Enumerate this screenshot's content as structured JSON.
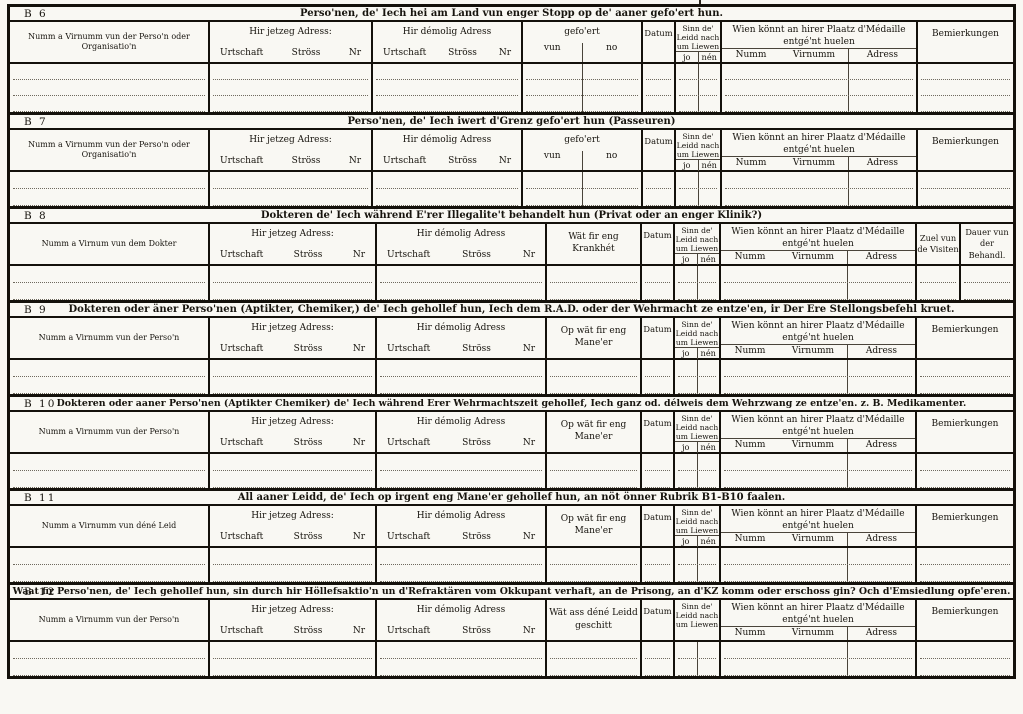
{
  "colors": {
    "paper": "#f9f8f3",
    "ink": "#17140e"
  },
  "common": {
    "current_address": "Hir jetzeg Adress:",
    "former_address": "Hir démolig Adress",
    "urtschaft": "Urtschaft",
    "stross": "Ströss",
    "nr": "Nr",
    "gefoert": "gefo'ert",
    "vun": "vun",
    "no": "no",
    "datum": "Datum",
    "alive_l1": "Sinn de'",
    "alive_l2": "Leidd nach",
    "alive_l3": "um Liewen",
    "jo": "jo",
    "nen": "nén",
    "medal_l1": "Wien könnt an hirer Plaatz d'Médaille",
    "medal_l2": "entgé'nt huelen",
    "numm": "Numm",
    "virnumm": "Virnumm",
    "adress": "Adress",
    "remarks": "Bemierkungen"
  },
  "sections": [
    {
      "id": "B 6",
      "title": "Perso'nen, de' Iech hei am Land vun enger Stopp op de' aaner gefo'ert hun.",
      "name_col": "Numm a Virnumm vun der Perso'n oder Organisatio'n"
    },
    {
      "id": "B 7",
      "title": "Perso'nen, de' Iech iwert d'Grenz gefo'ert hun (Passeuren)",
      "name_col": "Numm a Virnumm vun der Perso'n oder Organisatio'n"
    },
    {
      "id": "B 8",
      "title": "Dokteren de' Iech während E'rer Illegalite't behandelt hun (Privat oder an enger Klinik?)",
      "name_col": "Numm a Virnum vun dem Dokter",
      "col4": "Wät fir eng Krankhét",
      "visits_l1": "Zuel vun",
      "visits_l2": "de Visiten",
      "duration_l1": "Dauer vun",
      "duration_l2": "der Behandl."
    },
    {
      "id": "B 9",
      "title": "Dokteren oder äner Perso'nen (Aptikter, Chemiker,) de' Iech gehollef hun, Iech dem R.A.D. oder der Wehrmacht ze entze'en, ir Der Ere Stellongsbefehl kruet.",
      "name_col": "Numm a Virnumm vun der Perso'n",
      "col4": "Op wät fir eng Mane'er"
    },
    {
      "id": "B 10",
      "title": "Dokteren oder aaner Perso'nen (Aptikter Chemiker) de' Iech während Erer Wehrmachtszeit gehollef, Iech ganz od. délweis dem Wehrzwang ze entze'en. z. B. Medikamenter.",
      "name_col": "Numm a Virnumm vun der Perso'n",
      "col4": "Op wät fir eng Mane'er"
    },
    {
      "id": "B 11",
      "title": "All aaner Leidd, de' Iech op irgent eng Mane'er gehollef hun, an nöt önner Rubrik B1-B10 faalen.",
      "name_col": "Numm a Virnumm vun déné Leid",
      "col4": "Op wät fir eng Mane'er"
    },
    {
      "id": "B 12",
      "title": "Waat fir Perso'nen, de' Iech gehollef hun, sin durch hir Höllefsaktio'n un d'Refraktären vom Okkupant verhaft, an de Prisong, an d'KZ komm oder erschoss gin? Och d'Emsiedlung opfe'eren.",
      "name_col": "Numm a Virnumm vun der Perso'n",
      "col4_l1": "Wät ass déné Leidd",
      "col4_l2": "geschitt"
    }
  ]
}
